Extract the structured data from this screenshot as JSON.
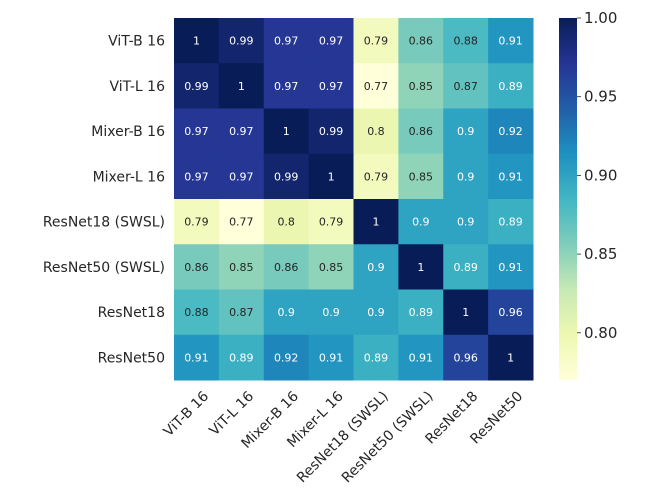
{
  "chart_data": {
    "type": "heatmap",
    "title": "",
    "xlabel": "",
    "ylabel": "",
    "row_labels": [
      "ViT-B 16",
      "ViT-L 16",
      "Mixer-B 16",
      "Mixer-L 16",
      "ResNet18 (SWSL)",
      "ResNet50 (SWSL)",
      "ResNet18",
      "ResNet50"
    ],
    "col_labels": [
      "ViT-B 16",
      "ViT-L 16",
      "Mixer-B 16",
      "Mixer-L 16",
      "ResNet18 (SWSL)",
      "ResNet50 (SWSL)",
      "ResNet18",
      "ResNet50"
    ],
    "values": [
      [
        1,
        0.99,
        0.97,
        0.97,
        0.79,
        0.86,
        0.88,
        0.91
      ],
      [
        0.99,
        1,
        0.97,
        0.97,
        0.77,
        0.85,
        0.87,
        0.89
      ],
      [
        0.97,
        0.97,
        1,
        0.99,
        0.8,
        0.86,
        0.9,
        0.92
      ],
      [
        0.97,
        0.97,
        0.99,
        1,
        0.79,
        0.85,
        0.9,
        0.91
      ],
      [
        0.79,
        0.77,
        0.8,
        0.79,
        1,
        0.9,
        0.9,
        0.89
      ],
      [
        0.86,
        0.85,
        0.86,
        0.85,
        0.9,
        1,
        0.89,
        0.91
      ],
      [
        0.88,
        0.87,
        0.9,
        0.9,
        0.9,
        0.89,
        1,
        0.96
      ],
      [
        0.91,
        0.89,
        0.92,
        0.91,
        0.89,
        0.91,
        0.96,
        1
      ]
    ],
    "annotated": true,
    "colormap": "YlGnBu",
    "vmin": 0.77,
    "vmax": 1.0,
    "colorbar": {
      "ticks": [
        0.8,
        0.85,
        0.9,
        0.95,
        1.0
      ],
      "tick_labels": [
        "0.80",
        "0.85",
        "0.90",
        "0.95",
        "1.00"
      ],
      "placement": "right"
    },
    "xtick_rotation_deg": 45,
    "grid": false
  }
}
